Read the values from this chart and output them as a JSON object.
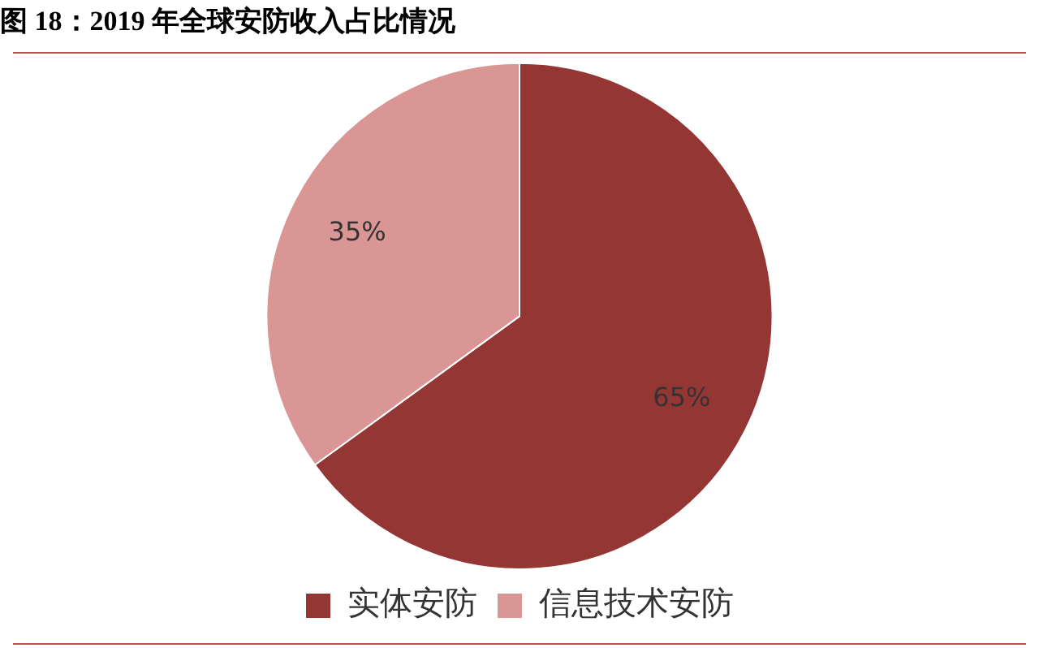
{
  "chart_data": {
    "type": "pie",
    "title": "图 18：2019 年全球安防收入占比情况",
    "categories": [
      "实体安防",
      "信息技术安防"
    ],
    "values": [
      65,
      35
    ],
    "value_labels": [
      "65%",
      "35%"
    ],
    "colors": [
      "#943634",
      "#d99694"
    ],
    "legend": "bottom"
  }
}
